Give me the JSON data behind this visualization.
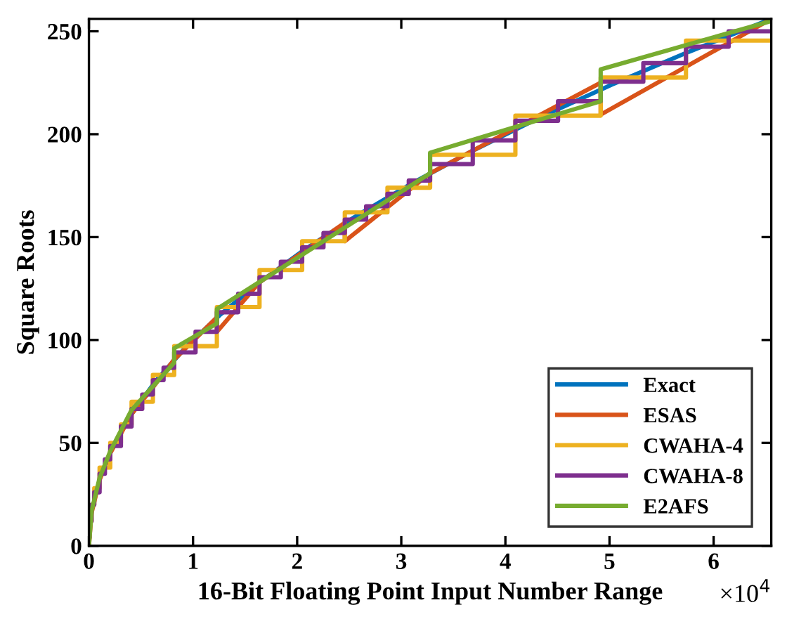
{
  "chart_data": {
    "type": "line",
    "xlabel": "16-Bit Floating Point Input Number Range",
    "ylabel": "Square Roots",
    "annotations": [
      "×10$^{4}$"
    ],
    "xlim": [
      0,
      6.5536
    ],
    "ylim": [
      0,
      256
    ],
    "xticks": [
      0,
      1,
      2,
      3,
      4,
      5,
      6
    ],
    "yticks": [
      0,
      50,
      100,
      150,
      200,
      250
    ],
    "grid": false,
    "legend": "bottom right",
    "line_style": "solid",
    "marker": "none",
    "series": [
      {
        "name": "Exact",
        "color": "#0072bd",
        "x": [
          0.4096,
          0.64,
          0.9216,
          1.2544,
          1.6384,
          2.0736,
          2.56,
          3.0976,
          3.6864,
          4.3264,
          5.0176,
          5.76,
          6.5536
        ],
        "values": [
          64,
          80,
          96,
          112,
          128,
          144,
          160,
          176,
          192,
          208,
          224,
          240,
          256
        ]
      },
      {
        "name": "ESAS",
        "color": "#d95319",
        "x": [
          0,
          0.0256,
          0.1024,
          0.2048,
          0.4096,
          0.6144,
          0.8192,
          1.2288,
          1.2288,
          1.6384,
          2.4576,
          2.4576,
          3.2768,
          4.9152,
          4.9152,
          6.5536
        ],
        "values": [
          0,
          16,
          32,
          45,
          64,
          77,
          90.5,
          111,
          104,
          128,
          157,
          148,
          181,
          225,
          209.5,
          256
        ]
      },
      {
        "name": "CWAHA-4",
        "color": "#edb120",
        "type": "step",
        "x": [
          0,
          0.0064,
          0.0256,
          0.0512,
          0.1024,
          0.2048,
          0.3072,
          0.4096,
          0.6144,
          0.8192,
          1.2288,
          1.6384,
          2.048,
          2.4576,
          2.8672,
          3.2768,
          4.096,
          4.9152,
          5.7344,
          6.5536
        ],
        "values": [
          4,
          12,
          20,
          28,
          38,
          50,
          59,
          70,
          83,
          97,
          116,
          134,
          148,
          162,
          174,
          190,
          209,
          227.5,
          245.5,
          245.5
        ]
      },
      {
        "name": "CWAHA-8",
        "color": "#7e2f8e",
        "type": "step",
        "x": [
          0,
          0.0064,
          0.0256,
          0.0512,
          0.1024,
          0.1536,
          0.2048,
          0.3072,
          0.4096,
          0.512,
          0.6144,
          0.7168,
          0.8192,
          1.024,
          1.2288,
          1.4336,
          1.6384,
          1.8432,
          2.048,
          2.2528,
          2.4576,
          2.6624,
          2.8672,
          3.072,
          3.2768,
          3.6864,
          4.096,
          4.5056,
          4.9152,
          5.3248,
          5.7344,
          6.144,
          6.5536
        ],
        "values": [
          4,
          12,
          20,
          26,
          35,
          42,
          48.5,
          58,
          66.5,
          73.5,
          80.5,
          86.5,
          94,
          104,
          113.5,
          122.5,
          130.5,
          138,
          145,
          152,
          158.5,
          165,
          171,
          177.5,
          185.5,
          197,
          206.5,
          216,
          225.5,
          234.5,
          242.5,
          250,
          250
        ]
      },
      {
        "name": "E2AFS",
        "color": "#77ac30",
        "x": [
          0,
          0.0256,
          0.1024,
          0.2048,
          0.4096,
          0.8192,
          0.8192,
          1.2288,
          1.2288,
          3.2768,
          3.2768,
          4.9152,
          4.9152,
          6.5536
        ],
        "values": [
          0,
          17,
          33,
          46,
          66,
          89,
          96,
          108,
          115,
          181,
          191,
          216,
          231.5,
          255
        ]
      }
    ]
  }
}
